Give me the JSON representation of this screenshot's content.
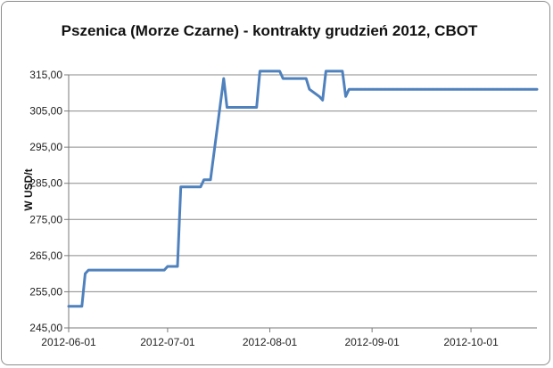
{
  "chart_data": {
    "type": "line",
    "title": "Pszenica (Morze Czarne) - kontrakty grudzień 2012, CBOT",
    "xlabel": "",
    "ylabel": "W USD/t",
    "ylim": [
      245,
      315
    ],
    "ytick_labels": [
      "245,00",
      "255,00",
      "265,00",
      "275,00",
      "285,00",
      "295,00",
      "305,00",
      "315,00"
    ],
    "xlim": [
      "2012-06-01",
      "2012-10-21"
    ],
    "xtick_labels": [
      "2012-06-01",
      "2012-07-01",
      "2012-08-01",
      "2012-09-01",
      "2012-10-01"
    ],
    "grid": true,
    "legend": "none",
    "series": [
      {
        "color": "#4f81bd",
        "x": [
          "2012-06-01",
          "2012-06-05",
          "2012-06-06",
          "2012-06-07",
          "2012-06-08",
          "2012-06-30",
          "2012-07-01",
          "2012-07-03",
          "2012-07-04",
          "2012-07-05",
          "2012-07-10",
          "2012-07-11",
          "2012-07-12",
          "2012-07-13",
          "2012-07-14",
          "2012-07-18",
          "2012-07-19",
          "2012-07-20",
          "2012-07-21",
          "2012-07-28",
          "2012-07-29",
          "2012-08-04",
          "2012-08-05",
          "2012-08-12",
          "2012-08-13",
          "2012-08-16",
          "2012-08-17",
          "2012-08-18",
          "2012-08-20",
          "2012-08-23",
          "2012-08-24",
          "2012-08-25",
          "2012-08-26",
          "2012-08-27",
          "2012-10-21"
        ],
        "y": [
          251,
          251,
          260,
          261,
          261,
          261,
          262,
          262,
          262,
          284,
          284,
          284,
          286,
          286,
          286,
          314,
          306,
          306,
          306,
          306,
          316,
          316,
          314,
          314,
          311,
          309,
          308,
          316,
          316,
          316,
          309,
          311,
          311,
          311,
          311
        ]
      }
    ]
  }
}
